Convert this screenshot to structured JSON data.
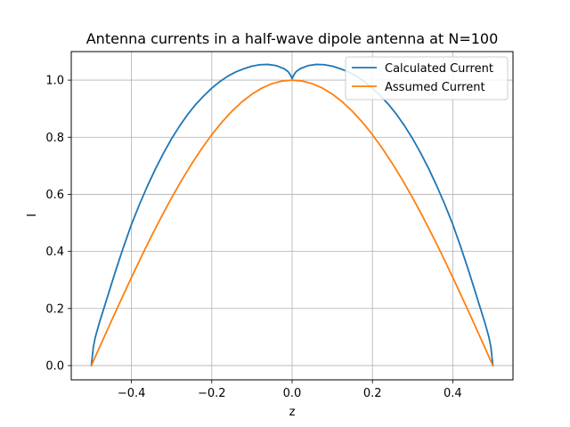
{
  "chart_data": {
    "type": "line",
    "title": "Antenna currents in a half-wave dipole antenna at N=100",
    "xlabel": "z",
    "ylabel": "I",
    "xlim": [
      -0.55,
      0.55
    ],
    "ylim": [
      -0.05,
      1.1
    ],
    "xticks": [
      -0.4,
      -0.2,
      0.0,
      0.2,
      0.4
    ],
    "xtick_labels": [
      "−0.4",
      "−0.2",
      "0.0",
      "0.2",
      "0.4"
    ],
    "yticks": [
      0.0,
      0.2,
      0.4,
      0.6,
      0.8,
      1.0
    ],
    "ytick_labels": [
      "0.0",
      "0.2",
      "0.4",
      "0.6",
      "0.8",
      "1.0"
    ],
    "grid": true,
    "legend_position": "top-right",
    "series": [
      {
        "name": "Calculated Current",
        "color": "#1f77b4",
        "x": [
          -0.5,
          -0.495,
          -0.49,
          -0.48,
          -0.46,
          -0.44,
          -0.42,
          -0.4,
          -0.38,
          -0.36,
          -0.34,
          -0.32,
          -0.3,
          -0.28,
          -0.26,
          -0.24,
          -0.22,
          -0.2,
          -0.18,
          -0.16,
          -0.14,
          -0.12,
          -0.1,
          -0.08,
          -0.06,
          -0.04,
          -0.02,
          -0.01,
          -0.005,
          0.0,
          0.005,
          0.01,
          0.02,
          0.04,
          0.06,
          0.08,
          0.1,
          0.12,
          0.14,
          0.16,
          0.18,
          0.2,
          0.22,
          0.24,
          0.26,
          0.28,
          0.3,
          0.32,
          0.34,
          0.36,
          0.38,
          0.4,
          0.42,
          0.44,
          0.46,
          0.48,
          0.49,
          0.495,
          0.5
        ],
        "y": [
          0.0,
          0.065,
          0.1,
          0.15,
          0.24,
          0.33,
          0.415,
          0.495,
          0.565,
          0.63,
          0.69,
          0.745,
          0.795,
          0.84,
          0.88,
          0.915,
          0.945,
          0.972,
          0.995,
          1.014,
          1.029,
          1.04,
          1.049,
          1.054,
          1.055,
          1.051,
          1.04,
          1.03,
          1.02,
          1.005,
          1.02,
          1.03,
          1.04,
          1.051,
          1.055,
          1.054,
          1.049,
          1.04,
          1.029,
          1.014,
          0.995,
          0.972,
          0.945,
          0.915,
          0.88,
          0.84,
          0.795,
          0.745,
          0.69,
          0.63,
          0.565,
          0.495,
          0.415,
          0.33,
          0.24,
          0.15,
          0.1,
          0.065,
          0.0
        ]
      },
      {
        "name": "Assumed Current",
        "color": "#ff7f0e",
        "x": [
          -0.5,
          -0.475,
          -0.45,
          -0.425,
          -0.4,
          -0.375,
          -0.35,
          -0.325,
          -0.3,
          -0.275,
          -0.25,
          -0.225,
          -0.2,
          -0.175,
          -0.15,
          -0.125,
          -0.1,
          -0.075,
          -0.05,
          -0.025,
          0.0,
          0.025,
          0.05,
          0.075,
          0.1,
          0.125,
          0.15,
          0.175,
          0.2,
          0.225,
          0.25,
          0.275,
          0.3,
          0.325,
          0.35,
          0.375,
          0.4,
          0.425,
          0.45,
          0.475,
          0.5
        ],
        "y": [
          0.0,
          0.0785,
          0.1564,
          0.2334,
          0.309,
          0.3827,
          0.454,
          0.5225,
          0.5878,
          0.6494,
          0.7071,
          0.7604,
          0.809,
          0.8526,
          0.891,
          0.9239,
          0.9511,
          0.9724,
          0.9877,
          0.9969,
          1.0,
          0.9969,
          0.9877,
          0.9724,
          0.9511,
          0.9239,
          0.891,
          0.8526,
          0.809,
          0.7604,
          0.7071,
          0.6494,
          0.5878,
          0.5225,
          0.454,
          0.3827,
          0.309,
          0.2334,
          0.1564,
          0.0785,
          0.0
        ]
      }
    ]
  }
}
